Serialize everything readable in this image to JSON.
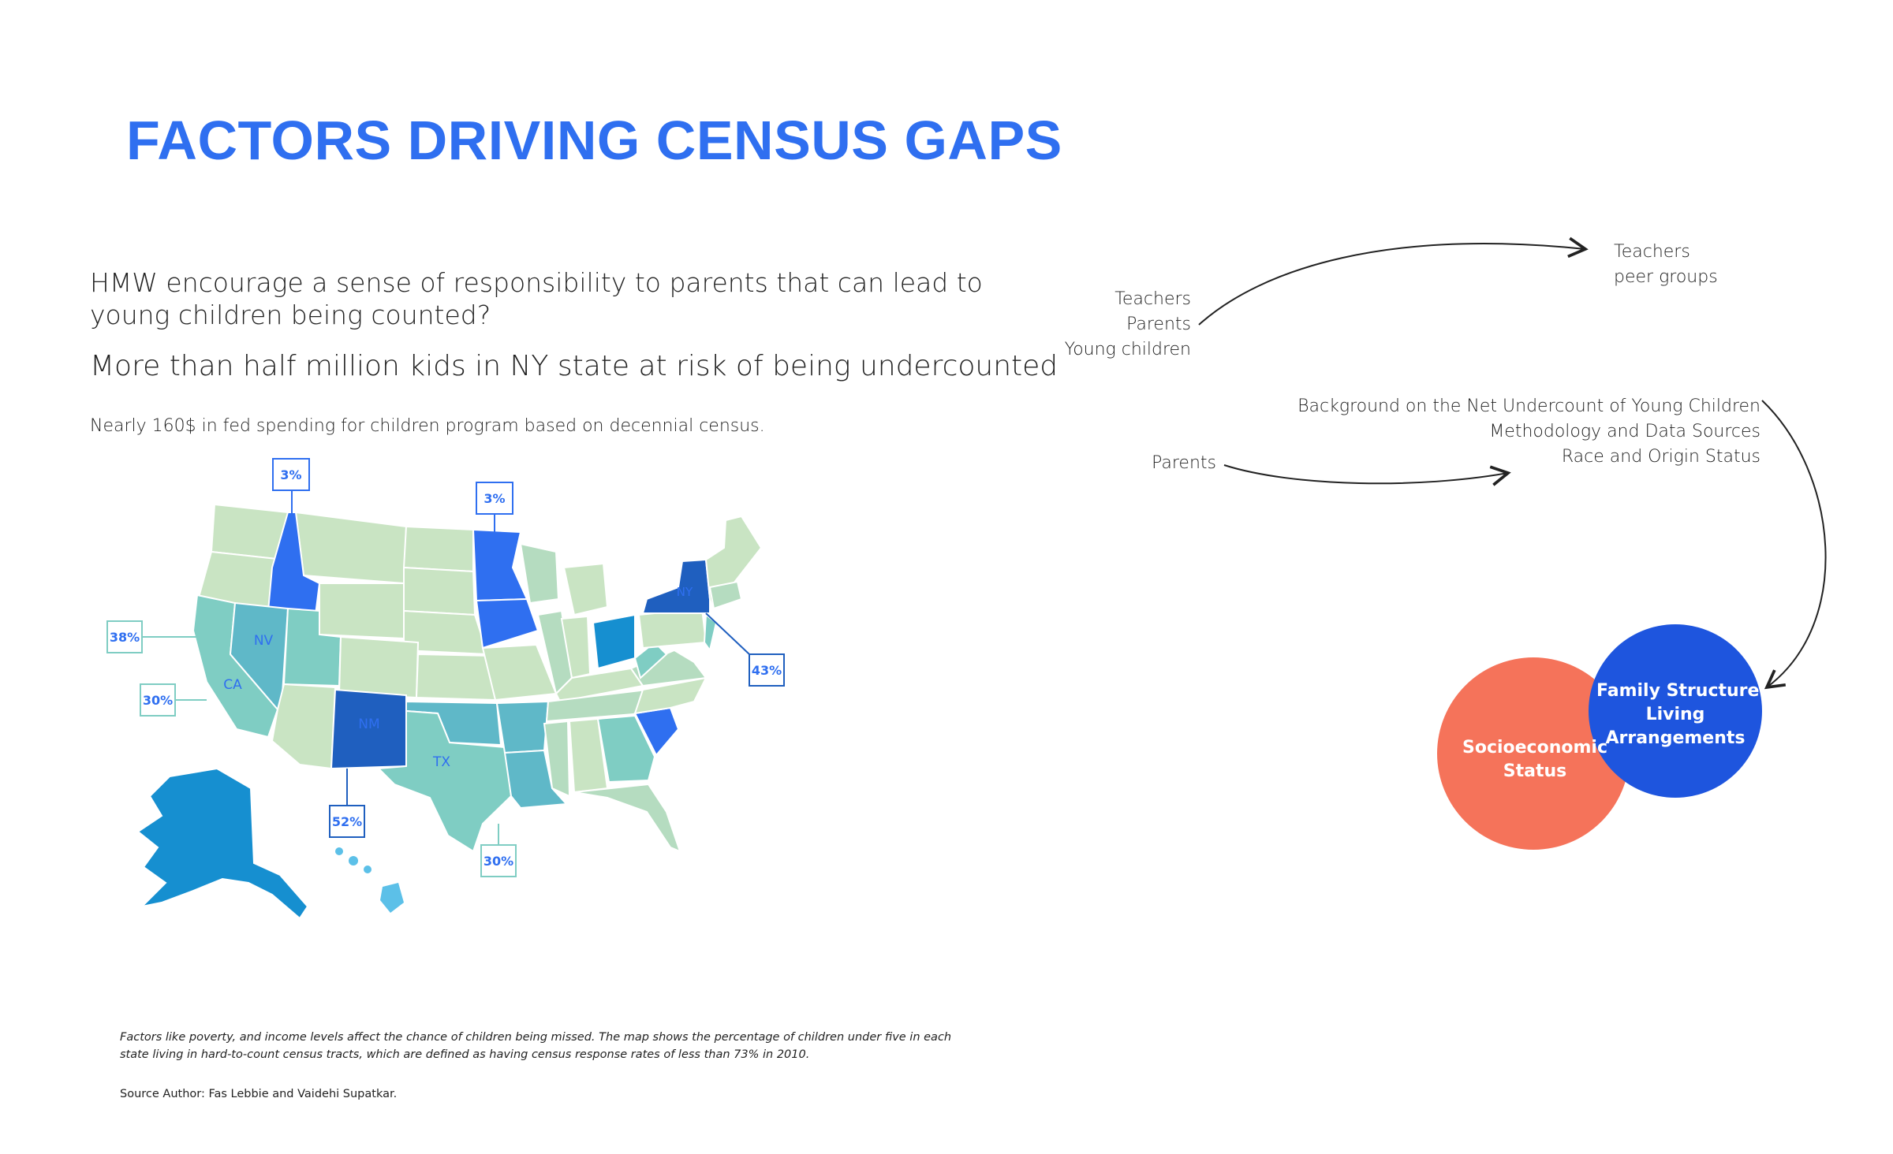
{
  "title": "FACTORS DRIVING CENSUS GAPS",
  "question": "HMW encourage a sense of responsibility to parents that can lead to young children being counted?",
  "stat": "More than half million kids in NY state at risk of being undercounted",
  "spending": "Nearly 160$ in fed spending for children program based on decennial census.",
  "footnote": "Factors like poverty, and income levels affect the chance of children being missed. The map shows the percentage of children under five in each state living in hard-to-count census tracts, which are defined as having census response rates of less than 73% in 2010.",
  "source": "Source Author: Fas Lebbie and Vaidehi Supatkar.",
  "map": {
    "state_labels": [
      "NV",
      "CA",
      "NM",
      "TX",
      "NY"
    ],
    "callouts": [
      "3%",
      "3%",
      "38%",
      "30%",
      "43%",
      "52%",
      "30%"
    ],
    "colors": {
      "light": "#c9e4c3",
      "light2": "#b5dcc0",
      "teal": "#7fcdc3",
      "teal2": "#5fb8c8",
      "blue": "#2f6ff0",
      "darkblue": "#1f5fbf",
      "medblue": "#168fd0",
      "sky": "#5cc0e8"
    }
  },
  "diagram": {
    "group1": [
      "Teachers",
      "Parents",
      "Young children"
    ],
    "target1": [
      "Teachers",
      "peer groups"
    ],
    "group2": [
      "Parents"
    ],
    "target2": [
      "Background on the Net Undercount of Young Children",
      "Methodology and Data Sources",
      "Race and  Origin Status"
    ],
    "circle_left": [
      "Socioeconomic",
      "Status"
    ],
    "circle_right": [
      "Family Structure",
      "Living",
      "Arrangements"
    ],
    "circle_left_color": "#f5735a",
    "circle_right_color": "#1e55de"
  }
}
